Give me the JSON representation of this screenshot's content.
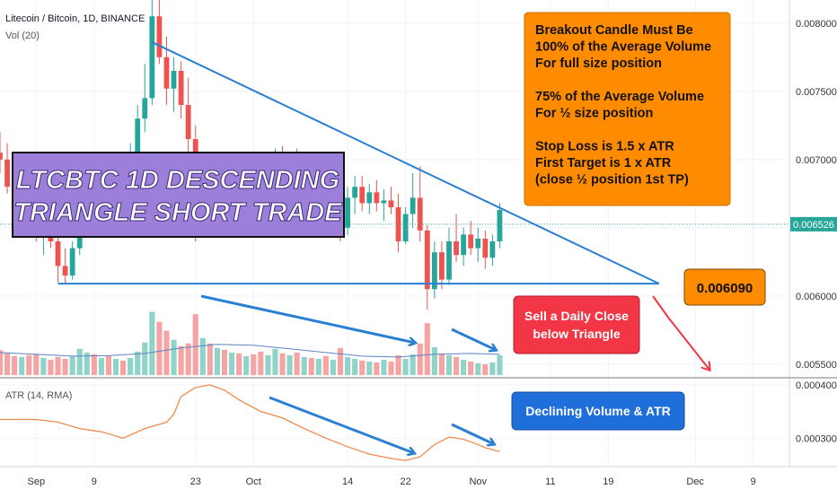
{
  "header": {
    "symbol_line": "Litecoin / Bitcoin, 1D, BINANCE",
    "volume_label": "Vol (20)",
    "atr_label": "ATR (14, RMA)"
  },
  "title_box": {
    "line1": "LTCBTC 1D DESCENDING",
    "line2": "TRIANGLE SHORT TRADE"
  },
  "rules_box": {
    "lines": [
      "Breakout Candle Must Be",
      "100% of the Average Volume",
      "For full size position",
      "",
      "75% of the Average Volume",
      "For ½ size position",
      "",
      "Stop Loss is 1.5 x ATR",
      "First Target is 1 x ATR",
      "(close ½ position 1st TP)"
    ]
  },
  "support_label": "0.006090",
  "sell_box": {
    "line1": "Sell a Daily Close",
    "line2": "below Triangle"
  },
  "declining_box": "Declining Volume & ATR",
  "current_price_label": "0.006526",
  "colors": {
    "up": "#26a69a",
    "down": "#ef5350",
    "vol_up": "#8fd3c9",
    "vol_down": "#f5a3a3",
    "trendline": "#2a7fd4",
    "orange": "#ff8c00",
    "purple": "#9b7fd9",
    "red_box": "#f23645",
    "blue_box": "#1e6fd9",
    "atr_line": "#f28a4b",
    "vol_ma": "#5b84c4"
  },
  "chart_data": {
    "type": "candlestick",
    "price_axis": {
      "ticks": [
        "0.008000",
        "0.007500",
        "0.007000",
        "0.006500",
        "0.006000",
        "0.005500"
      ],
      "tick_values": [
        0.008,
        0.0075,
        0.007,
        0.0065,
        0.006,
        0.0055
      ],
      "range": [
        0.00542,
        0.00813
      ]
    },
    "atr_axis": {
      "ticks": [
        "0.000400",
        "0.000300"
      ],
      "tick_values": [
        0.0004,
        0.0003
      ],
      "range": [
        0.00025,
        0.00041
      ]
    },
    "x_axis": {
      "labels": [
        "Sep",
        "9",
        "23",
        "Oct",
        "14",
        "22",
        "Nov",
        "11",
        "19",
        "Dec",
        "9"
      ],
      "label_days": [
        0,
        8,
        22,
        30,
        43,
        51,
        61,
        71,
        79,
        91,
        99
      ],
      "day_range": [
        -5,
        104
      ]
    },
    "candles": [
      {
        "d": -5,
        "o": 0.00705,
        "h": 0.0072,
        "l": 0.0069,
        "c": 0.007
      },
      {
        "d": -4,
        "o": 0.007,
        "h": 0.00712,
        "l": 0.00675,
        "c": 0.0068
      },
      {
        "d": -3,
        "o": 0.0068,
        "h": 0.00695,
        "l": 0.00665,
        "c": 0.00672
      },
      {
        "d": -2,
        "o": 0.00672,
        "h": 0.0069,
        "l": 0.0066,
        "c": 0.00685
      },
      {
        "d": -1,
        "o": 0.00685,
        "h": 0.0069,
        "l": 0.0065,
        "c": 0.00655
      },
      {
        "d": 0,
        "o": 0.00655,
        "h": 0.0067,
        "l": 0.0064,
        "c": 0.00645
      },
      {
        "d": 1,
        "o": 0.00645,
        "h": 0.00665,
        "l": 0.0063,
        "c": 0.0066
      },
      {
        "d": 2,
        "o": 0.0066,
        "h": 0.00668,
        "l": 0.00635,
        "c": 0.0064
      },
      {
        "d": 3,
        "o": 0.0064,
        "h": 0.00648,
        "l": 0.0061,
        "c": 0.00622
      },
      {
        "d": 4,
        "o": 0.00622,
        "h": 0.00635,
        "l": 0.00609,
        "c": 0.00615
      },
      {
        "d": 5,
        "o": 0.00615,
        "h": 0.0064,
        "l": 0.00612,
        "c": 0.00635
      },
      {
        "d": 6,
        "o": 0.00635,
        "h": 0.00672,
        "l": 0.0063,
        "c": 0.00665
      },
      {
        "d": 7,
        "o": 0.00665,
        "h": 0.0069,
        "l": 0.00658,
        "c": 0.0068
      },
      {
        "d": 8,
        "o": 0.0068,
        "h": 0.00695,
        "l": 0.00668,
        "c": 0.00672
      },
      {
        "d": 9,
        "o": 0.00672,
        "h": 0.007,
        "l": 0.00668,
        "c": 0.00695
      },
      {
        "d": 10,
        "o": 0.00695,
        "h": 0.00702,
        "l": 0.00675,
        "c": 0.0068
      },
      {
        "d": 11,
        "o": 0.0068,
        "h": 0.007,
        "l": 0.00672,
        "c": 0.00692
      },
      {
        "d": 12,
        "o": 0.00692,
        "h": 0.00705,
        "l": 0.0068,
        "c": 0.00685
      },
      {
        "d": 13,
        "o": 0.00685,
        "h": 0.00712,
        "l": 0.0068,
        "c": 0.00705
      },
      {
        "d": 14,
        "o": 0.00705,
        "h": 0.0074,
        "l": 0.007,
        "c": 0.0073
      },
      {
        "d": 15,
        "o": 0.0073,
        "h": 0.0077,
        "l": 0.0072,
        "c": 0.00745
      },
      {
        "d": 16,
        "o": 0.00745,
        "h": 0.0083,
        "l": 0.0074,
        "c": 0.00805
      },
      {
        "d": 17,
        "o": 0.00805,
        "h": 0.00818,
        "l": 0.0077,
        "c": 0.00775
      },
      {
        "d": 18,
        "o": 0.00775,
        "h": 0.0079,
        "l": 0.0074,
        "c": 0.00752
      },
      {
        "d": 19,
        "o": 0.00752,
        "h": 0.00775,
        "l": 0.00735,
        "c": 0.00765
      },
      {
        "d": 20,
        "o": 0.00765,
        "h": 0.00772,
        "l": 0.0073,
        "c": 0.0074
      },
      {
        "d": 21,
        "o": 0.0074,
        "h": 0.0076,
        "l": 0.007,
        "c": 0.00715
      },
      {
        "d": 22,
        "o": 0.00715,
        "h": 0.00725,
        "l": 0.0064,
        "c": 0.0065
      },
      {
        "d": 23,
        "o": 0.0065,
        "h": 0.0069,
        "l": 0.00645,
        "c": 0.0068
      },
      {
        "d": 24,
        "o": 0.0068,
        "h": 0.00695,
        "l": 0.0065,
        "c": 0.0066
      },
      {
        "d": 25,
        "o": 0.0066,
        "h": 0.0069,
        "l": 0.00655,
        "c": 0.00685
      },
      {
        "d": 26,
        "o": 0.00685,
        "h": 0.007,
        "l": 0.00668,
        "c": 0.00675
      },
      {
        "d": 27,
        "o": 0.00675,
        "h": 0.00692,
        "l": 0.00665,
        "c": 0.00688
      },
      {
        "d": 28,
        "o": 0.00688,
        "h": 0.00698,
        "l": 0.0067,
        "c": 0.00676
      },
      {
        "d": 29,
        "o": 0.00676,
        "h": 0.0069,
        "l": 0.00662,
        "c": 0.00684
      },
      {
        "d": 30,
        "o": 0.00684,
        "h": 0.007,
        "l": 0.0067,
        "c": 0.00678
      },
      {
        "d": 31,
        "o": 0.00678,
        "h": 0.00692,
        "l": 0.0066,
        "c": 0.00668
      },
      {
        "d": 32,
        "o": 0.00668,
        "h": 0.00695,
        "l": 0.00662,
        "c": 0.0069
      },
      {
        "d": 33,
        "o": 0.0069,
        "h": 0.00708,
        "l": 0.0068,
        "c": 0.00698
      },
      {
        "d": 34,
        "o": 0.00698,
        "h": 0.0071,
        "l": 0.00685,
        "c": 0.00692
      },
      {
        "d": 35,
        "o": 0.00692,
        "h": 0.00705,
        "l": 0.0068,
        "c": 0.007
      },
      {
        "d": 36,
        "o": 0.007,
        "h": 0.00708,
        "l": 0.00682,
        "c": 0.00688
      },
      {
        "d": 37,
        "o": 0.00688,
        "h": 0.00702,
        "l": 0.00675,
        "c": 0.00695
      },
      {
        "d": 38,
        "o": 0.00695,
        "h": 0.00705,
        "l": 0.0068,
        "c": 0.00685
      },
      {
        "d": 39,
        "o": 0.00685,
        "h": 0.00695,
        "l": 0.0067,
        "c": 0.0069
      },
      {
        "d": 40,
        "o": 0.0069,
        "h": 0.00698,
        "l": 0.00668,
        "c": 0.00675
      },
      {
        "d": 41,
        "o": 0.00675,
        "h": 0.0069,
        "l": 0.00665,
        "c": 0.00685
      },
      {
        "d": 42,
        "o": 0.00685,
        "h": 0.0069,
        "l": 0.0064,
        "c": 0.0065
      },
      {
        "d": 43,
        "o": 0.0065,
        "h": 0.0068,
        "l": 0.00645,
        "c": 0.00672
      },
      {
        "d": 44,
        "o": 0.00672,
        "h": 0.00688,
        "l": 0.0066,
        "c": 0.0068
      },
      {
        "d": 45,
        "o": 0.0068,
        "h": 0.00688,
        "l": 0.00662,
        "c": 0.00668
      },
      {
        "d": 46,
        "o": 0.00668,
        "h": 0.00682,
        "l": 0.0066,
        "c": 0.00676
      },
      {
        "d": 47,
        "o": 0.00676,
        "h": 0.00685,
        "l": 0.00662,
        "c": 0.00668
      },
      {
        "d": 48,
        "o": 0.00668,
        "h": 0.00678,
        "l": 0.00655,
        "c": 0.0067
      },
      {
        "d": 49,
        "o": 0.0067,
        "h": 0.0068,
        "l": 0.0066,
        "c": 0.00665
      },
      {
        "d": 50,
        "o": 0.00665,
        "h": 0.00675,
        "l": 0.00632,
        "c": 0.0064
      },
      {
        "d": 51,
        "o": 0.0064,
        "h": 0.00665,
        "l": 0.00638,
        "c": 0.0066
      },
      {
        "d": 52,
        "o": 0.0066,
        "h": 0.0069,
        "l": 0.0065,
        "c": 0.00672
      },
      {
        "d": 53,
        "o": 0.00672,
        "h": 0.00695,
        "l": 0.0064,
        "c": 0.00648
      },
      {
        "d": 54,
        "o": 0.00648,
        "h": 0.00652,
        "l": 0.0059,
        "c": 0.00605
      },
      {
        "d": 55,
        "o": 0.00605,
        "h": 0.0064,
        "l": 0.00598,
        "c": 0.00632
      },
      {
        "d": 56,
        "o": 0.00632,
        "h": 0.0064,
        "l": 0.00605,
        "c": 0.00612
      },
      {
        "d": 57,
        "o": 0.00612,
        "h": 0.0065,
        "l": 0.00608,
        "c": 0.0064
      },
      {
        "d": 58,
        "o": 0.0064,
        "h": 0.0066,
        "l": 0.00625,
        "c": 0.0063
      },
      {
        "d": 59,
        "o": 0.0063,
        "h": 0.0065,
        "l": 0.00622,
        "c": 0.00645
      },
      {
        "d": 60,
        "o": 0.00645,
        "h": 0.00655,
        "l": 0.0063,
        "c": 0.00635
      },
      {
        "d": 61,
        "o": 0.00635,
        "h": 0.0065,
        "l": 0.00625,
        "c": 0.00642
      },
      {
        "d": 62,
        "o": 0.00642,
        "h": 0.00648,
        "l": 0.0062,
        "c": 0.00628
      },
      {
        "d": 63,
        "o": 0.00628,
        "h": 0.00645,
        "l": 0.00622,
        "c": 0.0064
      },
      {
        "d": 64,
        "o": 0.0064,
        "h": 0.00668,
        "l": 0.00635,
        "c": 0.00663
      }
    ],
    "volume": [
      {
        "d": -5,
        "v": 55
      },
      {
        "d": -4,
        "v": 48
      },
      {
        "d": -3,
        "v": 42
      },
      {
        "d": -2,
        "v": 40
      },
      {
        "d": -1,
        "v": 44
      },
      {
        "d": 0,
        "v": 46
      },
      {
        "d": 1,
        "v": 38
      },
      {
        "d": 2,
        "v": 34
      },
      {
        "d": 3,
        "v": 40
      },
      {
        "d": 4,
        "v": 36
      },
      {
        "d": 5,
        "v": 42
      },
      {
        "d": 6,
        "v": 58
      },
      {
        "d": 7,
        "v": 50
      },
      {
        "d": 8,
        "v": 46
      },
      {
        "d": 9,
        "v": 38
      },
      {
        "d": 10,
        "v": 42
      },
      {
        "d": 11,
        "v": 36
      },
      {
        "d": 12,
        "v": 32
      },
      {
        "d": 13,
        "v": 38
      },
      {
        "d": 14,
        "v": 52
      },
      {
        "d": 15,
        "v": 72
      },
      {
        "d": 16,
        "v": 140
      },
      {
        "d": 17,
        "v": 118
      },
      {
        "d": 18,
        "v": 98
      },
      {
        "d": 19,
        "v": 78
      },
      {
        "d": 20,
        "v": 64
      },
      {
        "d": 21,
        "v": 70
      },
      {
        "d": 22,
        "v": 135
      },
      {
        "d": 23,
        "v": 82
      },
      {
        "d": 24,
        "v": 70
      },
      {
        "d": 25,
        "v": 60
      },
      {
        "d": 26,
        "v": 56
      },
      {
        "d": 27,
        "v": 50
      },
      {
        "d": 28,
        "v": 48
      },
      {
        "d": 29,
        "v": 42
      },
      {
        "d": 30,
        "v": 46
      },
      {
        "d": 31,
        "v": 52
      },
      {
        "d": 32,
        "v": 44
      },
      {
        "d": 33,
        "v": 58
      },
      {
        "d": 34,
        "v": 48
      },
      {
        "d": 35,
        "v": 44
      },
      {
        "d": 36,
        "v": 50
      },
      {
        "d": 37,
        "v": 40
      },
      {
        "d": 38,
        "v": 38
      },
      {
        "d": 39,
        "v": 36
      },
      {
        "d": 40,
        "v": 42
      },
      {
        "d": 41,
        "v": 34
      },
      {
        "d": 42,
        "v": 60
      },
      {
        "d": 43,
        "v": 40
      },
      {
        "d": 44,
        "v": 36
      },
      {
        "d": 45,
        "v": 32
      },
      {
        "d": 46,
        "v": 30
      },
      {
        "d": 47,
        "v": 28
      },
      {
        "d": 48,
        "v": 34
      },
      {
        "d": 49,
        "v": 30
      },
      {
        "d": 50,
        "v": 44
      },
      {
        "d": 51,
        "v": 36
      },
      {
        "d": 52,
        "v": 46
      },
      {
        "d": 53,
        "v": 70
      },
      {
        "d": 54,
        "v": 115
      },
      {
        "d": 55,
        "v": 62
      },
      {
        "d": 56,
        "v": 48
      },
      {
        "d": 57,
        "v": 44
      },
      {
        "d": 58,
        "v": 40
      },
      {
        "d": 59,
        "v": 34
      },
      {
        "d": 60,
        "v": 30
      },
      {
        "d": 61,
        "v": 26
      },
      {
        "d": 62,
        "v": 24
      },
      {
        "d": 63,
        "v": 28
      },
      {
        "d": 64,
        "v": 44
      }
    ],
    "volume_ma": [
      {
        "d": -5,
        "v": 50
      },
      {
        "d": 0,
        "v": 46
      },
      {
        "d": 5,
        "v": 42
      },
      {
        "d": 10,
        "v": 43
      },
      {
        "d": 15,
        "v": 48
      },
      {
        "d": 20,
        "v": 60
      },
      {
        "d": 25,
        "v": 68
      },
      {
        "d": 30,
        "v": 66
      },
      {
        "d": 35,
        "v": 58
      },
      {
        "d": 40,
        "v": 50
      },
      {
        "d": 45,
        "v": 42
      },
      {
        "d": 50,
        "v": 40
      },
      {
        "d": 55,
        "v": 46
      },
      {
        "d": 60,
        "v": 48
      },
      {
        "d": 64,
        "v": 46
      }
    ],
    "atr": [
      {
        "d": -5,
        "v": 0.000335
      },
      {
        "d": 0,
        "v": 0.000335
      },
      {
        "d": 3,
        "v": 0.00033
      },
      {
        "d": 6,
        "v": 0.000318
      },
      {
        "d": 9,
        "v": 0.000312
      },
      {
        "d": 12,
        "v": 0.0003
      },
      {
        "d": 15,
        "v": 0.000318
      },
      {
        "d": 18,
        "v": 0.00033
      },
      {
        "d": 19,
        "v": 0.000345
      },
      {
        "d": 20,
        "v": 0.000378
      },
      {
        "d": 22,
        "v": 0.000395
      },
      {
        "d": 24,
        "v": 0.0004
      },
      {
        "d": 26,
        "v": 0.00039
      },
      {
        "d": 28,
        "v": 0.000372
      },
      {
        "d": 31,
        "v": 0.00035
      },
      {
        "d": 34,
        "v": 0.000338
      },
      {
        "d": 37,
        "v": 0.000318
      },
      {
        "d": 40,
        "v": 0.0003
      },
      {
        "d": 43,
        "v": 0.000284
      },
      {
        "d": 46,
        "v": 0.00027
      },
      {
        "d": 49,
        "v": 0.000262
      },
      {
        "d": 51,
        "v": 0.000258
      },
      {
        "d": 53,
        "v": 0.000265
      },
      {
        "d": 55,
        "v": 0.000288
      },
      {
        "d": 57,
        "v": 0.000302
      },
      {
        "d": 59,
        "v": 0.000298
      },
      {
        "d": 61,
        "v": 0.000288
      },
      {
        "d": 62,
        "v": 0.000282
      },
      {
        "d": 64,
        "v": 0.000275
      }
    ],
    "trendlines": [
      {
        "from": {
          "d": 16,
          "v": 0.00786
        },
        "to": {
          "d": 86,
          "v": 0.00609
        }
      },
      {
        "from": {
          "d": 3,
          "v": 0.00609
        },
        "to": {
          "d": 86,
          "v": 0.00609
        }
      }
    ],
    "current_price": 0.006526,
    "support": 0.00609
  }
}
